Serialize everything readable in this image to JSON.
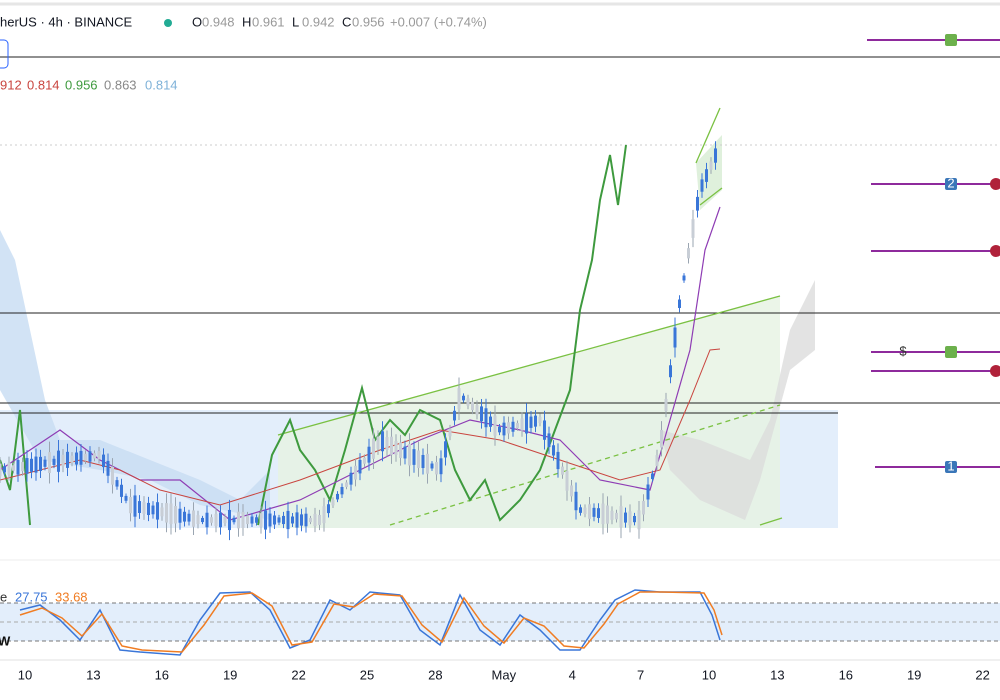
{
  "header": {
    "symbol": "herUS · 4h · BINANCE",
    "ohlc": [
      {
        "key": "O",
        "value": "0.948"
      },
      {
        "key": "H",
        "value": "0.961"
      },
      {
        "key": "L",
        "value": "0.942"
      },
      {
        "key": "C",
        "value": "0.956"
      }
    ],
    "change": "+0.007 (+0.74%)"
  },
  "indicator": {
    "values": [
      "912",
      "0.814",
      "0.956",
      "0.863",
      "0.814"
    ]
  },
  "stoch": {
    "name": "e",
    "k": "27.75",
    "d": "33.68",
    "marker": "W"
  },
  "markers": {
    "dollar": "$",
    "two": "2",
    "one": "1"
  },
  "x_axis": {
    "labels": [
      "10",
      "13",
      "16",
      "19",
      "22",
      "25",
      "28",
      "May",
      "4",
      "7",
      "10",
      "13",
      "16",
      "19",
      "22"
    ]
  }
}
